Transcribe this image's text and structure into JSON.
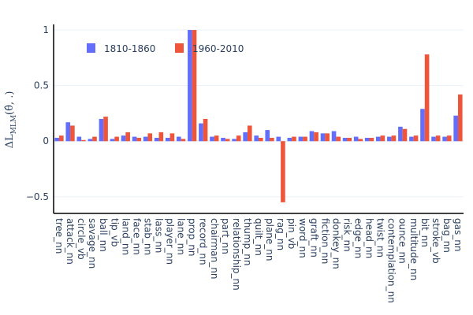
{
  "chart_data": {
    "type": "bar",
    "title": "",
    "xlabel": "",
    "ylabel": "ΔL",
    "ylabel_subscript": "MLM",
    "ylabel_suffix": "(θ̂, .)",
    "ylim": [
      -0.65,
      1.05
    ],
    "yticks": [
      -0.5,
      0,
      0.5,
      1
    ],
    "ytick_labels": [
      "−0.5",
      "0",
      "0.5",
      "1"
    ],
    "grid": true,
    "legend_position": "top-left",
    "categories": [
      "tree_nn",
      "attack_nn",
      "circle_vb",
      "savage_nn",
      "ball_nn",
      "tip_vb",
      "land_nn",
      "face_nn",
      "stab_nn",
      "lass_nn",
      "player_nn",
      "lane_nn",
      "prop_nn",
      "record_nn",
      "chairman_nn",
      "part_nn",
      "relationship_nn",
      "thump_nn",
      "quilt_nn",
      "plane_nn",
      "rag_nn",
      "pin_vb",
      "word_nn",
      "graft_nn",
      "fiction_nn",
      "donkey_nn",
      "risk_nn",
      "edge_nn",
      "head_nn",
      "twist_nn",
      "contemplation_nn",
      "ounce_nn",
      "multitude_nn",
      "bit_nn",
      "stroke_vb",
      "bag_nn",
      "gas_nn"
    ],
    "series": [
      {
        "name": "1810-1860",
        "color": "#636efa",
        "values": [
          0.03,
          0.17,
          0.04,
          0.02,
          0.2,
          0.02,
          0.05,
          0.04,
          0.04,
          0.03,
          0.03,
          0.04,
          1.0,
          0.16,
          0.04,
          0.03,
          0.02,
          0.08,
          0.05,
          0.1,
          0.04,
          0.03,
          0.04,
          0.09,
          0.07,
          0.09,
          0.03,
          0.04,
          0.03,
          0.04,
          0.04,
          0.13,
          0.04,
          0.29,
          0.04,
          0.04,
          0.23
        ]
      },
      {
        "name": "1960-2010",
        "color": "#ef553b",
        "values": [
          0.05,
          0.14,
          0.01,
          0.04,
          0.22,
          0.04,
          0.08,
          0.03,
          0.07,
          0.08,
          0.07,
          0.02,
          1.0,
          0.2,
          0.05,
          0.02,
          0.05,
          0.14,
          0.03,
          0.03,
          -0.55,
          0.04,
          0.04,
          0.08,
          0.07,
          0.04,
          0.03,
          0.02,
          0.03,
          0.05,
          0.05,
          0.11,
          0.05,
          0.78,
          0.05,
          0.05,
          0.42
        ]
      }
    ]
  }
}
